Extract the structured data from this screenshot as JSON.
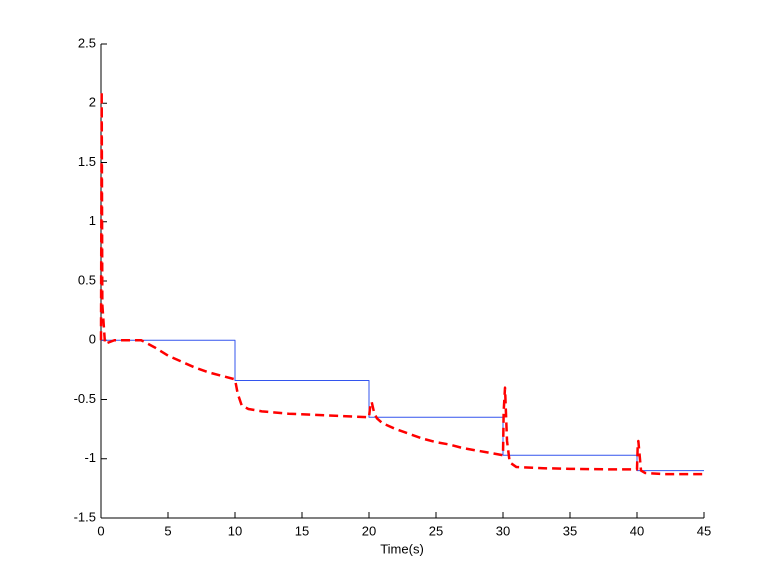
{
  "chart_data": {
    "type": "line",
    "xlabel": "Time(s)",
    "xlim": [
      0,
      45
    ],
    "xticks": [
      0,
      5,
      10,
      15,
      20,
      25,
      30,
      35,
      40,
      45
    ],
    "ylim": [
      -1.5,
      2.5
    ],
    "yticks": [
      -1.5,
      -1,
      -0.5,
      0,
      0.5,
      1,
      1.5,
      2,
      2.5
    ],
    "grid": false,
    "series": [
      {
        "color": "#3355ee",
        "dash": false,
        "width": 1,
        "x": [
          0,
          10,
          10,
          20,
          20,
          30,
          30,
          40,
          40,
          45
        ],
        "values": [
          0,
          0,
          -0.34,
          -0.34,
          -0.65,
          -0.65,
          -0.97,
          -0.97,
          -1.1,
          -1.1
        ]
      },
      {
        "color": "#ff0000",
        "dash": true,
        "width": 2.5,
        "x": [
          0,
          0.05,
          0.1,
          0.3,
          1,
          2,
          3,
          4,
          5,
          6,
          7,
          8,
          9,
          10,
          10.2,
          10.5,
          11,
          12,
          14,
          16,
          18,
          20,
          20.1,
          20.2,
          20.4,
          20.6,
          21,
          22,
          23,
          24,
          25,
          26,
          27,
          28,
          29,
          30,
          30.05,
          30.15,
          30.3,
          30.5,
          31,
          33,
          35,
          38,
          40,
          40.05,
          40.1,
          40.3,
          40.6,
          42,
          45
        ],
        "values": [
          0,
          2.1,
          0.3,
          -0.03,
          0,
          0,
          0,
          -0.06,
          -0.13,
          -0.18,
          -0.23,
          -0.27,
          -0.3,
          -0.33,
          -0.45,
          -0.55,
          -0.58,
          -0.6,
          -0.62,
          -0.63,
          -0.64,
          -0.65,
          -0.55,
          -0.52,
          -0.62,
          -0.66,
          -0.7,
          -0.75,
          -0.79,
          -0.83,
          -0.86,
          -0.88,
          -0.91,
          -0.93,
          -0.95,
          -0.97,
          -0.6,
          -0.4,
          -0.85,
          -1.03,
          -1.07,
          -1.08,
          -1.085,
          -1.09,
          -1.09,
          -0.9,
          -0.85,
          -1.1,
          -1.12,
          -1.13,
          -1.13
        ]
      }
    ]
  }
}
